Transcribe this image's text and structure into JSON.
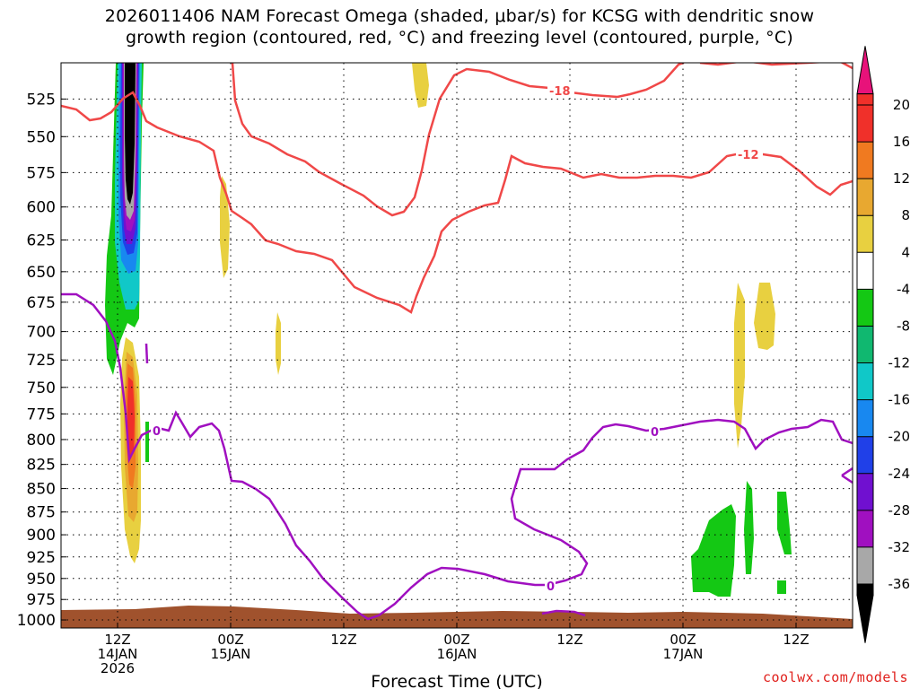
{
  "title_line1": "2026011406 NAM Forecast Omega (shaded, μbar/s) for KCSG with dendritic snow",
  "title_line2": "growth region (contoured, red, °C) and freezing level (contoured, purple, °C)",
  "credit": "coolwx.com/models",
  "chart_data": {
    "type": "time-height cross section",
    "xlabel": "Forecast Time (UTC)",
    "ylabel": "",
    "x_range": [
      "2026-01-14T06:00Z",
      "2026-01-17T18:00Z"
    ],
    "y_range_hpa": [
      1010,
      502
    ],
    "y_ticks": [
      525,
      550,
      575,
      600,
      625,
      650,
      675,
      700,
      725,
      750,
      775,
      800,
      825,
      850,
      875,
      900,
      925,
      950,
      975,
      1000
    ],
    "x_ticks": [
      {
        "time": "2026-01-14T12:00Z",
        "lines": [
          "12Z",
          "14JAN",
          "2026"
        ]
      },
      {
        "time": "2026-01-15T00:00Z",
        "lines": [
          "00Z",
          "15JAN"
        ]
      },
      {
        "time": "2026-01-15T12:00Z",
        "lines": [
          "12Z"
        ]
      },
      {
        "time": "2026-01-16T00:00Z",
        "lines": [
          "00Z",
          "16JAN"
        ]
      },
      {
        "time": "2026-01-16T12:00Z",
        "lines": [
          "12Z"
        ]
      },
      {
        "time": "2026-01-17T00:00Z",
        "lines": [
          "00Z",
          "17JAN"
        ]
      },
      {
        "time": "2026-01-17T12:00Z",
        "lines": [
          "12Z"
        ]
      }
    ],
    "grid": true,
    "colorbar": {
      "position": "right",
      "labels": [
        "20",
        "16",
        "12",
        "8",
        "4",
        "-4",
        "-8",
        "-12",
        "-16",
        "-20",
        "-24",
        "-28",
        "-32",
        "-36"
      ],
      "colors": [
        "#e8127a",
        "#f0302a",
        "#f07a20",
        "#e8a830",
        "#e8d040",
        "#ffffff",
        "#14c814",
        "#10b870",
        "#10c8c8",
        "#1888f0",
        "#2040e8",
        "#7010d0",
        "#a010c0",
        "#a8a8a8",
        "#000000"
      ]
    },
    "contour_labels": [
      {
        "text": "-18",
        "color": "#f04848"
      },
      {
        "text": "-12",
        "color": "#f04848"
      },
      {
        "text": "0",
        "color": "#a010c0"
      },
      {
        "text": "0",
        "color": "#a010c0"
      },
      {
        "text": "0",
        "color": "#a010c0"
      }
    ]
  }
}
